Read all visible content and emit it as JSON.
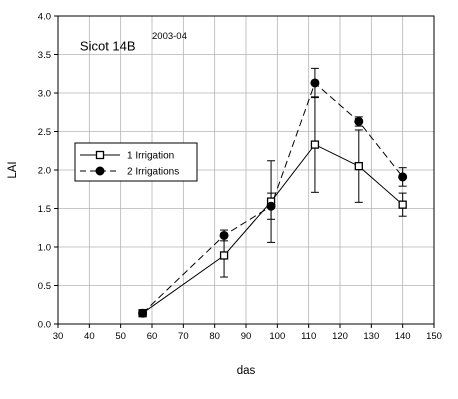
{
  "chart_data": {
    "type": "line",
    "xlabel": "das",
    "ylabel": "LAI",
    "xlim": [
      30,
      150
    ],
    "ylim": [
      0,
      4.0
    ],
    "xticks": [
      30,
      40,
      50,
      60,
      70,
      80,
      90,
      100,
      110,
      120,
      130,
      140,
      150
    ],
    "yticks": [
      "0.0",
      "0.5",
      "1.0",
      "1.5",
      "2.0",
      "2.5",
      "3.0",
      "3.5",
      "4.0"
    ],
    "grid": true,
    "legend_position": "middle-left",
    "annotations": [
      {
        "text": "Sicot 14B",
        "x": 37,
        "y": 3.55
      },
      {
        "text": "2003-04",
        "x": 60,
        "y": 3.7
      }
    ],
    "series": [
      {
        "name": "1 Irrigation",
        "line_style": "solid",
        "marker": "open-square",
        "x": [
          57,
          83,
          98,
          112,
          126,
          140
        ],
        "y": [
          0.14,
          0.89,
          1.59,
          2.33,
          2.05,
          1.55
        ],
        "err": [
          0.03,
          0.28,
          0.53,
          0.62,
          0.47,
          0.15
        ]
      },
      {
        "name": "2 Irrigations",
        "line_style": "dashed",
        "marker": "filled-circle",
        "x": [
          57,
          83,
          98,
          112,
          126,
          140
        ],
        "y": [
          0.14,
          1.15,
          1.53,
          3.13,
          2.63,
          1.91
        ],
        "err": [
          0.03,
          0.07,
          0.17,
          0.19,
          0.06,
          0.12
        ]
      }
    ]
  }
}
